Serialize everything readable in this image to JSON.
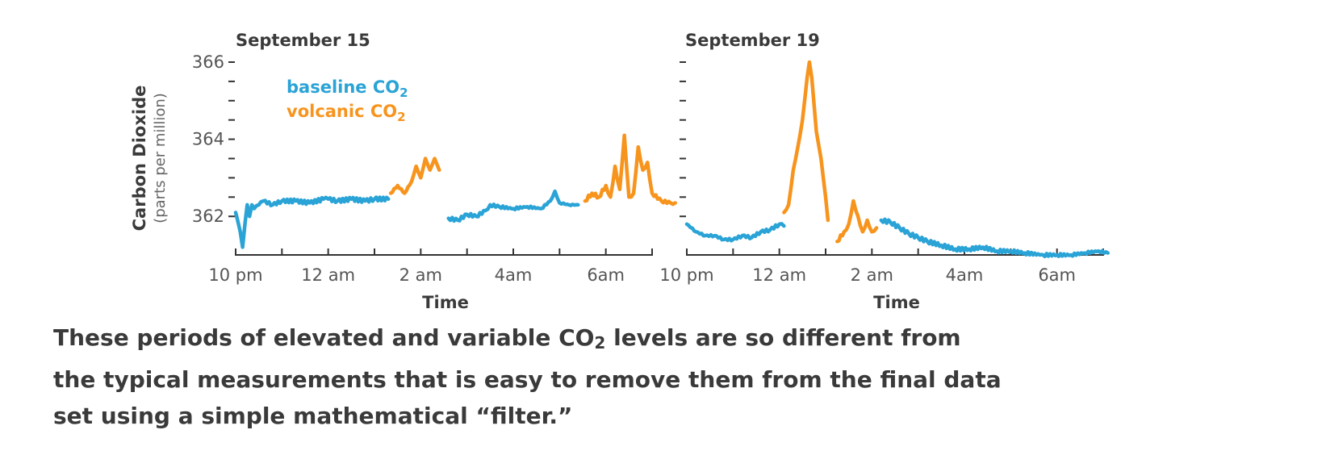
{
  "colors": {
    "baseline": "#2aa3d6",
    "volcanic": "#f7941d",
    "axis": "#333333",
    "text": "#3a3a3a"
  },
  "legend": {
    "baseline": "baseline CO",
    "volcanic": "volcanic CO",
    "subscript": "2"
  },
  "caption": {
    "part1": "These periods of elevated and variable CO",
    "sub": "2",
    "part2": " levels are so different from the typical measurements that is easy to remove them from the final data set using a simple mathematical “filter.”"
  },
  "chart_data": [
    {
      "type": "line",
      "title": "September 15",
      "xlabel": "Time",
      "ylabel": "Carbon Dioxide",
      "ylabel_sub": "(parts per million)",
      "ylim": [
        361,
        366
      ],
      "xlim": [
        22,
        31
      ],
      "x_ticks": [
        22,
        23,
        24,
        25,
        26,
        27,
        28,
        29,
        30,
        31
      ],
      "x_tick_labels": [
        "10 pm",
        "12 am",
        "2 am",
        "4am",
        "6am"
      ],
      "x_tick_label_positions": [
        22,
        24,
        26,
        28,
        30
      ],
      "y_ticks": [
        362,
        362.5,
        363,
        363.5,
        364,
        364.5,
        365,
        365.5,
        366
      ],
      "y_tick_labels": [
        "362",
        "364",
        "366"
      ],
      "y_tick_label_values": [
        362,
        364,
        366
      ],
      "series": [
        {
          "name": "baseline CO2",
          "color_key": "baseline",
          "x": [
            22.0,
            22.1,
            22.15,
            22.2,
            22.25,
            22.3,
            22.35,
            22.4,
            22.5,
            22.6,
            22.8,
            23.0,
            23.3,
            23.6,
            23.9,
            24.0,
            24.2,
            24.5,
            24.8,
            25.0,
            25.3
          ],
          "y": [
            362.1,
            361.6,
            361.2,
            361.8,
            362.3,
            362.0,
            362.3,
            362.2,
            362.3,
            362.4,
            362.3,
            362.4,
            362.4,
            362.35,
            362.45,
            362.45,
            362.4,
            362.45,
            362.4,
            362.45,
            362.45
          ]
        },
        {
          "name": "volcanic CO2",
          "color_key": "volcanic",
          "x": [
            25.35,
            25.5,
            25.65,
            25.8,
            25.9,
            26.0,
            26.1,
            26.2,
            26.3,
            26.4
          ],
          "y": [
            362.6,
            362.8,
            362.6,
            362.9,
            363.3,
            363.0,
            363.5,
            363.2,
            363.5,
            363.2
          ]
        },
        {
          "name": "baseline CO2",
          "color_key": "baseline",
          "x": [
            26.6,
            26.8,
            27.0,
            27.2,
            27.4,
            27.5,
            27.7,
            28.0,
            28.3,
            28.6,
            28.8,
            28.9,
            29.0,
            29.2,
            29.4
          ],
          "y": [
            361.95,
            361.9,
            362.05,
            362.0,
            362.15,
            362.3,
            362.25,
            362.2,
            362.25,
            362.2,
            362.4,
            362.65,
            362.35,
            362.3,
            362.3
          ]
        },
        {
          "name": "volcanic CO2",
          "color_key": "volcanic",
          "x": [
            29.55,
            29.7,
            29.85,
            30.0,
            30.1,
            30.2,
            30.3,
            30.4,
            30.5,
            30.6,
            30.7,
            30.8,
            30.9,
            31.0,
            31.2,
            31.4,
            31.5
          ],
          "y": [
            362.4,
            362.6,
            362.5,
            362.8,
            362.5,
            363.3,
            362.7,
            364.1,
            362.5,
            362.6,
            363.8,
            363.2,
            363.4,
            362.6,
            362.4,
            362.35,
            362.35
          ]
        }
      ]
    },
    {
      "type": "line",
      "title": "September 19",
      "xlabel": "Time",
      "ylim": [
        361,
        366
      ],
      "xlim": [
        22,
        31
      ],
      "x_ticks": [
        22,
        23,
        24,
        25,
        26,
        27,
        28,
        29,
        30,
        31
      ],
      "x_tick_labels": [
        "10 pm",
        "12 am",
        "2 am",
        "4am",
        "6am"
      ],
      "x_tick_label_positions": [
        22,
        24,
        26,
        28,
        30
      ],
      "y_ticks": [
        362,
        362.5,
        363,
        363.5,
        364,
        364.5,
        365,
        365.5,
        366
      ],
      "series": [
        {
          "name": "baseline CO2",
          "color_key": "baseline",
          "x": [
            22.0,
            22.2,
            22.4,
            22.6,
            22.8,
            23.0,
            23.2,
            23.4,
            23.6,
            23.8,
            24.0,
            24.1
          ],
          "y": [
            361.8,
            361.6,
            361.5,
            361.5,
            361.4,
            361.4,
            361.5,
            361.45,
            361.6,
            361.65,
            361.8,
            361.75
          ]
        },
        {
          "name": "volcanic CO2",
          "color_key": "volcanic",
          "x": [
            24.1,
            24.2,
            24.3,
            24.4,
            24.5,
            24.6,
            24.65,
            24.7,
            24.8,
            24.9,
            25.0,
            25.05
          ],
          "y": [
            362.1,
            362.3,
            363.2,
            363.8,
            364.5,
            365.6,
            366.0,
            365.6,
            364.2,
            363.5,
            362.5,
            361.9
          ]
        },
        {
          "name": "volcanic CO2",
          "color_key": "volcanic",
          "x": [
            25.25,
            25.4,
            25.5,
            25.6,
            25.7,
            25.8,
            25.9,
            26.0,
            26.1
          ],
          "y": [
            361.35,
            361.6,
            361.8,
            362.4,
            362.0,
            361.6,
            361.9,
            361.6,
            361.7
          ]
        },
        {
          "name": "baseline CO2",
          "color_key": "baseline",
          "x": [
            26.2,
            26.4,
            26.6,
            26.8,
            27.0,
            27.2,
            27.5,
            27.8,
            28.1,
            28.4,
            28.7,
            29.0,
            29.3,
            29.7,
            30.0,
            30.3,
            30.6,
            30.9,
            31.1
          ],
          "y": [
            361.9,
            361.85,
            361.7,
            361.55,
            361.45,
            361.35,
            361.25,
            361.15,
            361.15,
            361.2,
            361.1,
            361.1,
            361.05,
            361.0,
            361.0,
            361.0,
            361.05,
            361.1,
            361.05
          ]
        }
      ]
    }
  ]
}
